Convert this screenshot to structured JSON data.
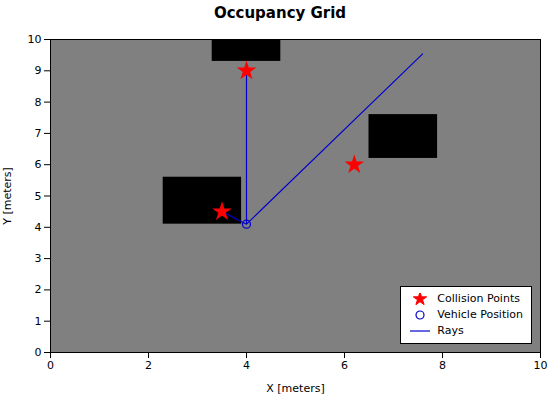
{
  "chart_data": {
    "type": "occupancy",
    "title": "Occupancy Grid",
    "xlabel": "X [meters]",
    "ylabel": "Y [meters]",
    "xlim": [
      0,
      10
    ],
    "ylim": [
      0,
      10
    ],
    "xticks": [
      0,
      2,
      4,
      6,
      8,
      10
    ],
    "yticks": [
      0,
      1,
      2,
      3,
      4,
      5,
      6,
      7,
      8,
      9,
      10
    ],
    "grid": false,
    "legend": "lower right",
    "background_color": "#808080",
    "obstacles": {
      "color": "#000000",
      "rects": [
        {
          "x": 3.3,
          "y": 9.3,
          "w": 1.4,
          "h": 0.7
        },
        {
          "x": 2.3,
          "y": 4.1,
          "w": 1.6,
          "h": 1.5
        },
        {
          "x": 6.5,
          "y": 6.2,
          "w": 1.4,
          "h": 1.4
        }
      ]
    },
    "series": [
      {
        "name": "Collision Points",
        "type": "scatter",
        "marker": "star",
        "color": "#FF0000",
        "x": [
          4.0,
          3.5,
          6.2
        ],
        "y": [
          9.0,
          4.5,
          6.0
        ]
      },
      {
        "name": "Vehicle Position",
        "type": "scatter",
        "marker": "circle",
        "color": "#0000CC",
        "x": [
          4.0
        ],
        "y": [
          4.1
        ]
      },
      {
        "name": "Rays",
        "type": "line",
        "color": "#0000CC",
        "x1": [
          4.0,
          4.0,
          4.0
        ],
        "y1": [
          4.1,
          4.1,
          4.1
        ],
        "x2": [
          4.0,
          3.5,
          7.6
        ],
        "y2": [
          9.0,
          4.5,
          9.55
        ]
      }
    ]
  }
}
